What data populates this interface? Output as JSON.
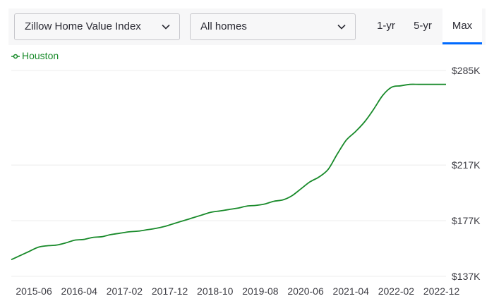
{
  "controls": {
    "metric_select": "Zillow Home Value Index",
    "home_type_select": "All homes",
    "ranges": [
      "1-yr",
      "5-yr",
      "Max"
    ],
    "active_range": "Max"
  },
  "colors": {
    "series": "#188a2a",
    "active_tab_underline": "#006aff",
    "gridline": "#ececec"
  },
  "chart_data": {
    "type": "line",
    "title": "",
    "xlabel": "",
    "ylabel": "",
    "legend_position": "top-left",
    "grid": "horizontal",
    "ylim": [
      137,
      285
    ],
    "y_ticks": [
      137,
      177,
      217,
      285
    ],
    "y_tick_labels": [
      "$137K",
      "$177K",
      "$217K",
      "$285K"
    ],
    "x_ticks": [
      "2015-06",
      "2016-04",
      "2017-02",
      "2017-12",
      "2018-10",
      "2019-08",
      "2020-06",
      "2021-04",
      "2022-02",
      "2022-12"
    ],
    "series": [
      {
        "name": "Houston",
        "x": [
          "2015-01",
          "2015-03",
          "2015-05",
          "2015-07",
          "2015-09",
          "2015-11",
          "2016-01",
          "2016-03",
          "2016-05",
          "2016-07",
          "2016-09",
          "2016-11",
          "2017-01",
          "2017-03",
          "2017-05",
          "2017-07",
          "2017-09",
          "2017-11",
          "2018-01",
          "2018-03",
          "2018-05",
          "2018-07",
          "2018-09",
          "2018-11",
          "2019-01",
          "2019-03",
          "2019-05",
          "2019-07",
          "2019-09",
          "2019-11",
          "2020-01",
          "2020-03",
          "2020-05",
          "2020-07",
          "2020-09",
          "2020-11",
          "2021-01",
          "2021-03",
          "2021-05",
          "2021-07",
          "2021-09",
          "2021-11",
          "2022-01",
          "2022-03",
          "2022-05",
          "2022-07",
          "2022-09",
          "2022-11",
          "2023-01"
        ],
        "values": [
          149,
          152,
          155,
          158,
          159,
          159.5,
          161,
          163,
          163.5,
          165,
          165.5,
          167,
          168,
          169,
          169.5,
          170.5,
          171.5,
          173,
          175,
          177,
          179,
          181,
          183,
          184,
          185,
          186,
          187.5,
          188,
          189,
          191,
          192,
          195,
          200,
          205,
          208.5,
          214,
          225,
          235,
          241,
          248,
          257,
          267,
          273,
          274,
          275,
          275,
          275,
          275,
          275
        ]
      }
    ]
  }
}
